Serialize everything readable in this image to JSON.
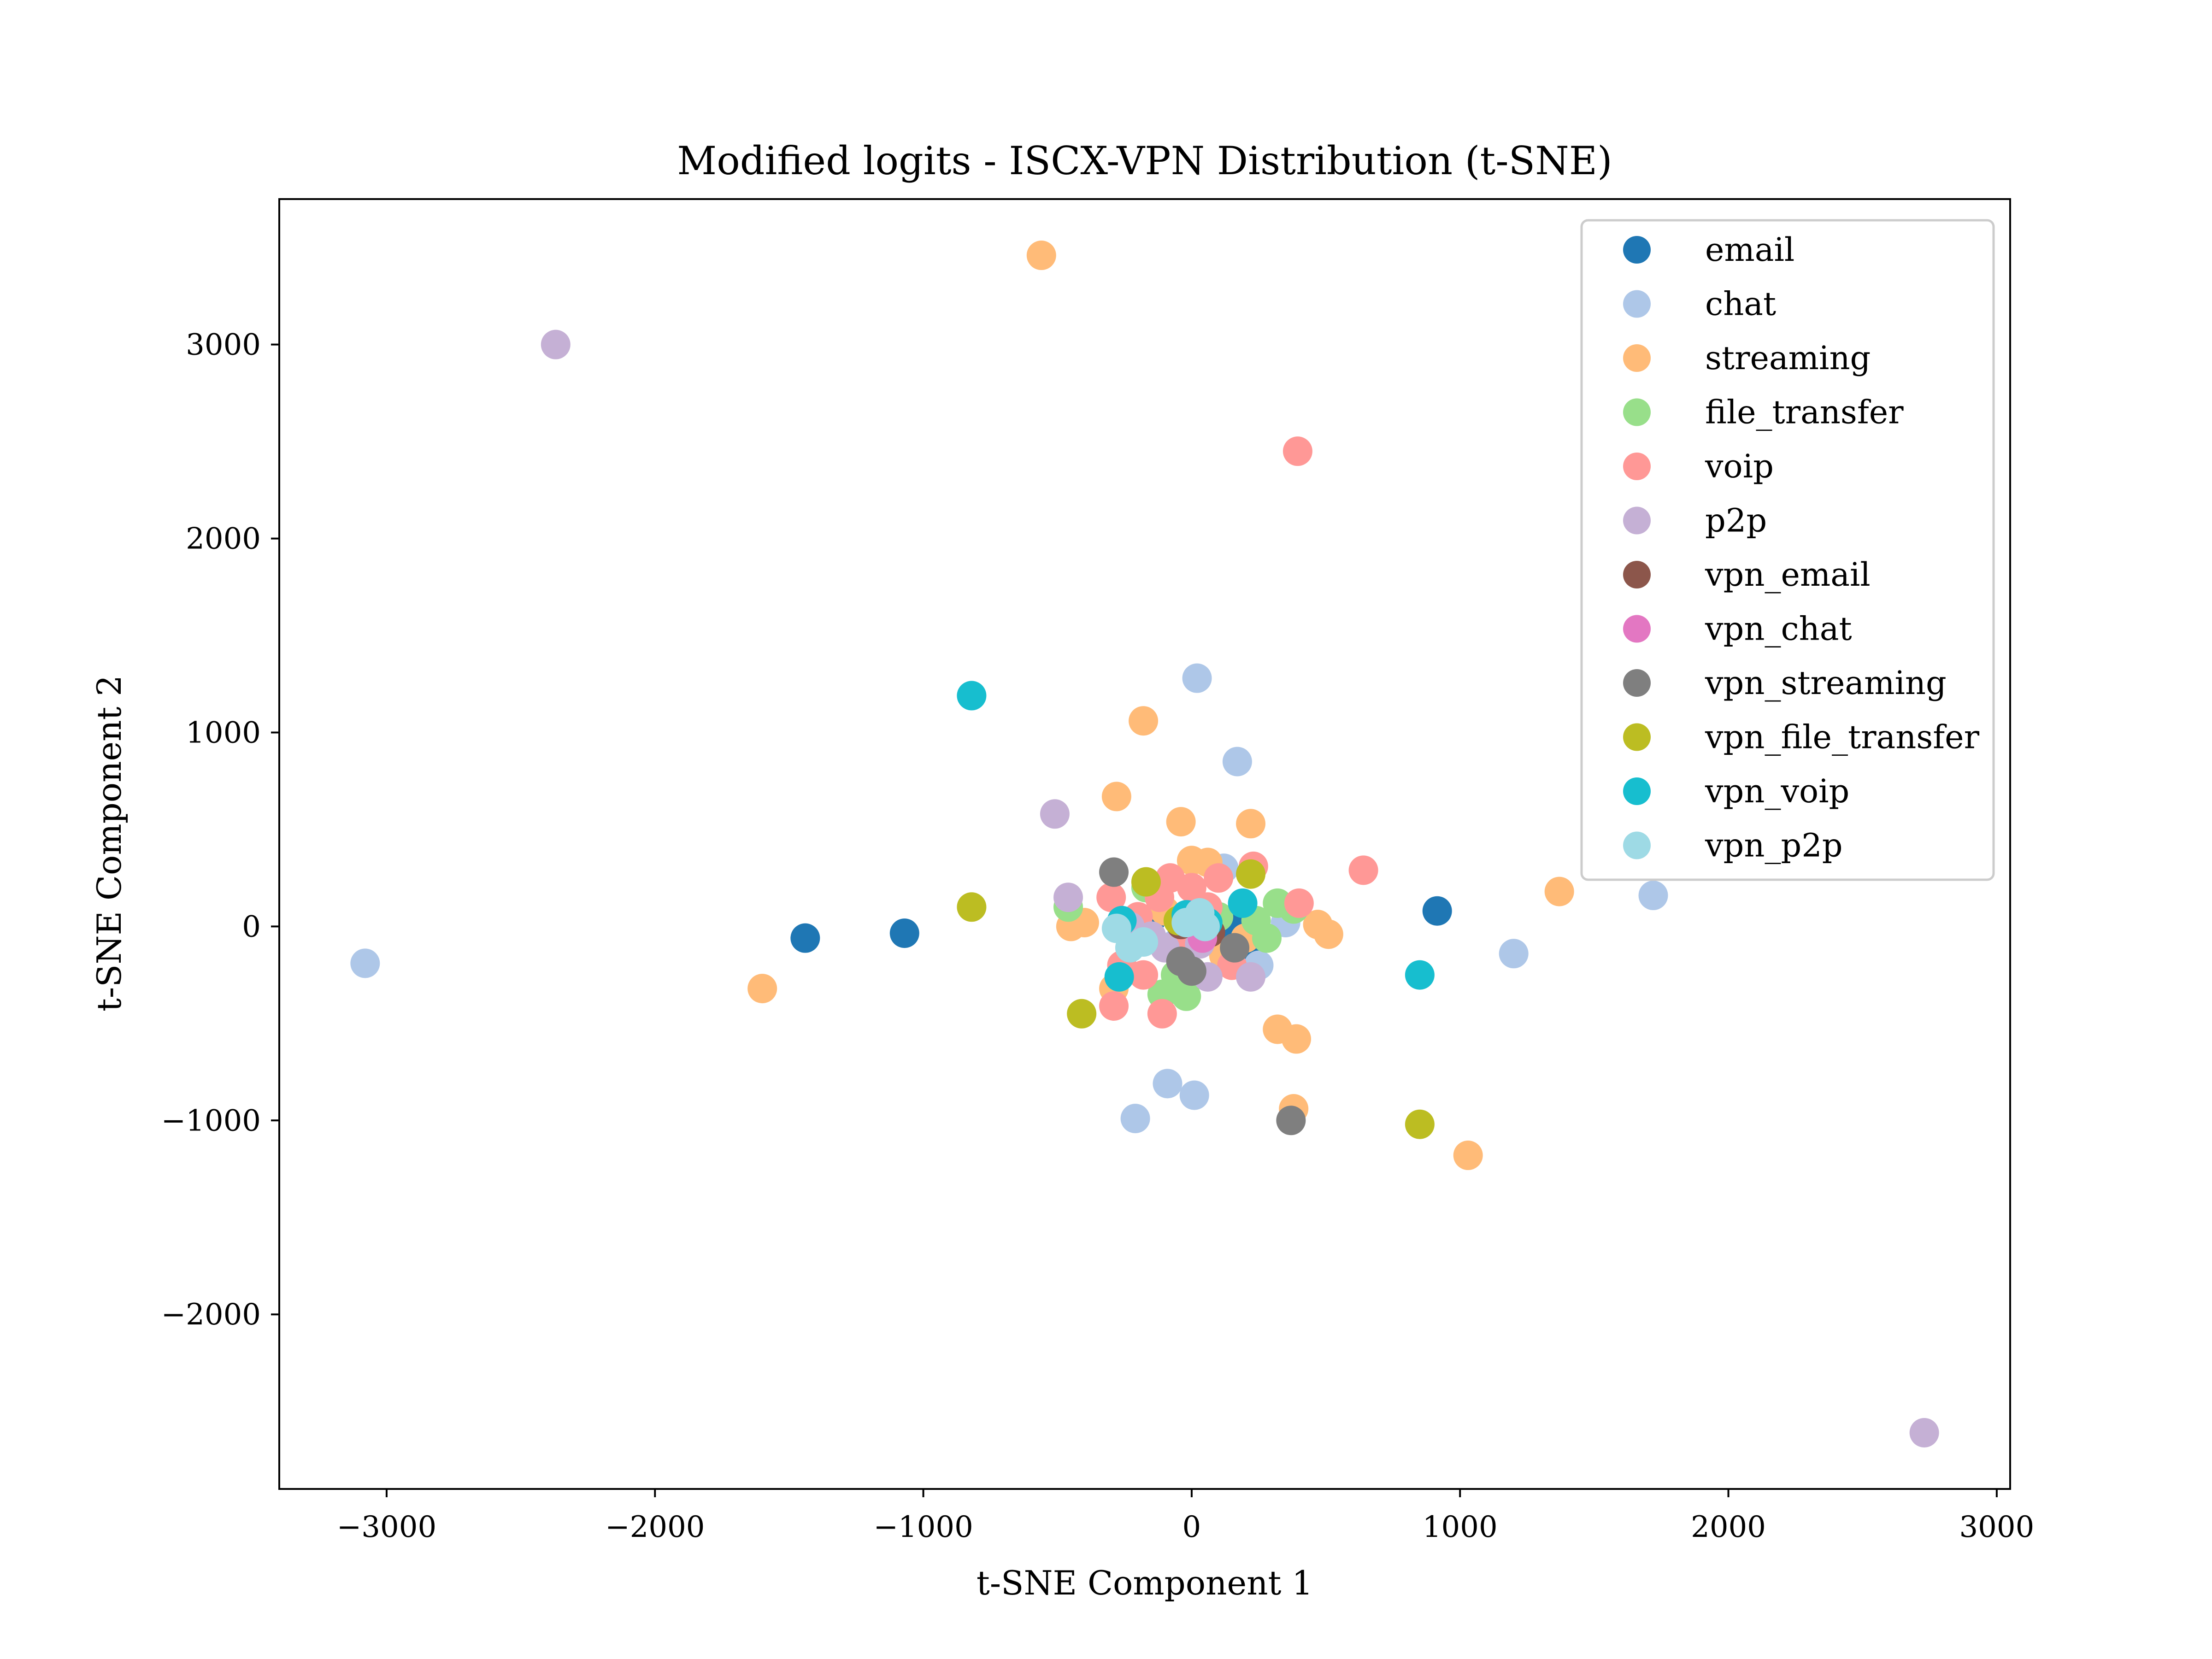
{
  "chart_data": {
    "type": "scatter",
    "title": "Modified logits - ISCX-VPN Distribution (t-SNE)",
    "xlabel": "t-SNE Component 1",
    "ylabel": "t-SNE Component 2",
    "xlim": [
      -3400,
      3050
    ],
    "ylim": [
      -2900,
      3750
    ],
    "xticks": [
      -3000,
      -2000,
      -1000,
      0,
      1000,
      2000,
      3000
    ],
    "yticks": [
      -2000,
      -1000,
      0,
      1000,
      2000,
      3000
    ],
    "xtick_labels": [
      "−3000",
      "−2000",
      "−1000",
      "0",
      "1000",
      "2000",
      "3000"
    ],
    "ytick_labels": [
      "−2000",
      "−1000",
      "0",
      "1000",
      "2000",
      "3000"
    ],
    "grid": false,
    "legend_position": "top-right",
    "series": [
      {
        "name": "email",
        "color": "#1f77b4",
        "points": [
          [
            -1440,
            -60
          ],
          [
            -1070,
            -35
          ],
          [
            915,
            80
          ],
          [
            -150,
            40
          ],
          [
            90,
            -40
          ],
          [
            200,
            -120
          ],
          [
            60,
            60
          ],
          [
            -20,
            -20
          ],
          [
            150,
            20
          ]
        ]
      },
      {
        "name": "chat",
        "color": "#aec7e8",
        "points": [
          [
            -3080,
            -190
          ],
          [
            20,
            1280
          ],
          [
            170,
            850
          ],
          [
            1720,
            160
          ],
          [
            1200,
            -140
          ],
          [
            -90,
            -810
          ],
          [
            10,
            -870
          ],
          [
            -210,
            -990
          ],
          [
            120,
            300
          ],
          [
            350,
            20
          ],
          [
            -60,
            -90
          ],
          [
            250,
            -200
          ]
        ]
      },
      {
        "name": "streaming",
        "color": "#ffbb78",
        "points": [
          [
            -560,
            3460
          ],
          [
            -180,
            1060
          ],
          [
            -280,
            670
          ],
          [
            -40,
            540
          ],
          [
            220,
            530
          ],
          [
            -1600,
            -320
          ],
          [
            1370,
            180
          ],
          [
            470,
            10
          ],
          [
            510,
            -40
          ],
          [
            -450,
            0
          ],
          [
            -400,
            20
          ],
          [
            320,
            -530
          ],
          [
            390,
            -580
          ],
          [
            380,
            -940
          ],
          [
            1030,
            -1180
          ],
          [
            -290,
            -320
          ],
          [
            0,
            340
          ],
          [
            60,
            330
          ],
          [
            -20,
            -200
          ],
          [
            120,
            -150
          ],
          [
            200,
            -60
          ],
          [
            -100,
            80
          ]
        ]
      },
      {
        "name": "file_transfer",
        "color": "#98df8a",
        "points": [
          [
            -460,
            100
          ],
          [
            -110,
            -350
          ],
          [
            -20,
            -360
          ],
          [
            280,
            -60
          ],
          [
            320,
            120
          ],
          [
            -170,
            200
          ],
          [
            100,
            50
          ],
          [
            240,
            30
          ],
          [
            -60,
            -250
          ],
          [
            380,
            90
          ]
        ]
      },
      {
        "name": "voip",
        "color": "#ff9896",
        "points": [
          [
            395,
            2450
          ],
          [
            640,
            290
          ],
          [
            400,
            120
          ],
          [
            230,
            310
          ],
          [
            -110,
            -450
          ],
          [
            -290,
            -410
          ],
          [
            -260,
            -200
          ],
          [
            -180,
            -250
          ],
          [
            -300,
            150
          ],
          [
            -80,
            250
          ],
          [
            -120,
            150
          ],
          [
            0,
            200
          ],
          [
            60,
            100
          ],
          [
            -200,
            50
          ],
          [
            150,
            -200
          ],
          [
            -50,
            -100
          ],
          [
            100,
            250
          ]
        ]
      },
      {
        "name": "p2p",
        "color": "#c5b0d5",
        "points": [
          [
            -2370,
            3000
          ],
          [
            2730,
            -2610
          ],
          [
            -510,
            580
          ],
          [
            -460,
            150
          ],
          [
            -230,
            0
          ],
          [
            220,
            -260
          ],
          [
            60,
            -260
          ],
          [
            -100,
            -110
          ],
          [
            30,
            -90
          ],
          [
            -150,
            -50
          ]
        ]
      },
      {
        "name": "vpn_email",
        "color": "#8c564b",
        "points": [
          [
            -40,
            10
          ],
          [
            70,
            -30
          ]
        ]
      },
      {
        "name": "vpn_chat",
        "color": "#e377c2",
        "points": [
          [
            -10,
            60
          ],
          [
            40,
            -60
          ]
        ]
      },
      {
        "name": "vpn_streaming",
        "color": "#7f7f7f",
        "points": [
          [
            -290,
            280
          ],
          [
            370,
            -1000
          ],
          [
            0,
            -230
          ],
          [
            -40,
            -180
          ],
          [
            160,
            -110
          ]
        ]
      },
      {
        "name": "vpn_file_transfer",
        "color": "#bcbd22",
        "points": [
          [
            -820,
            100
          ],
          [
            -410,
            -450
          ],
          [
            850,
            -1020
          ],
          [
            220,
            270
          ],
          [
            -170,
            230
          ],
          [
            -50,
            30
          ]
        ]
      },
      {
        "name": "vpn_voip",
        "color": "#17becf",
        "points": [
          [
            -820,
            1190
          ],
          [
            850,
            -250
          ],
          [
            -270,
            -260
          ],
          [
            -260,
            30
          ],
          [
            60,
            20
          ],
          [
            -20,
            60
          ],
          [
            190,
            120
          ]
        ]
      },
      {
        "name": "vpn_p2p",
        "color": "#9edae5",
        "points": [
          [
            -230,
            -110
          ],
          [
            -180,
            -80
          ],
          [
            30,
            70
          ],
          [
            50,
            0
          ],
          [
            -20,
            20
          ],
          [
            -280,
            -10
          ]
        ]
      }
    ]
  }
}
